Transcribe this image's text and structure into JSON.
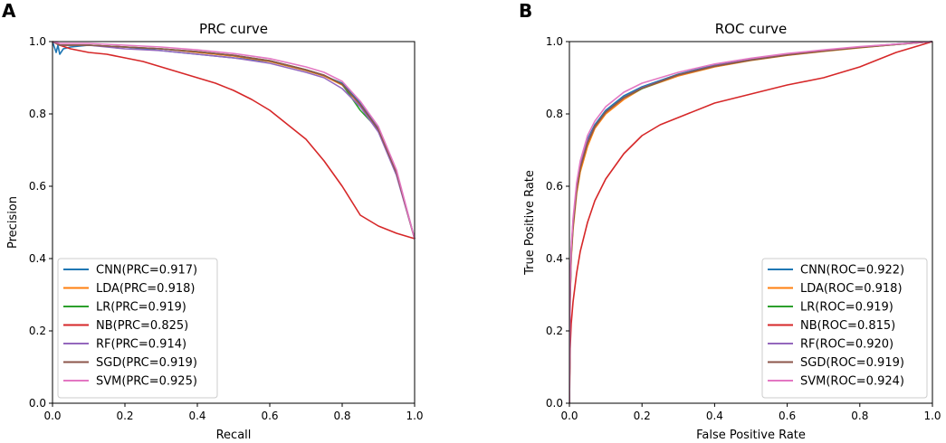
{
  "chart_data": [
    {
      "type": "line",
      "panel": "A",
      "title": "PRC curve",
      "xlabel": "Recall",
      "ylabel": "Precision",
      "xlim": [
        0,
        1
      ],
      "ylim": [
        0,
        1
      ],
      "xticks": [
        "0.0",
        "0.2",
        "0.4",
        "0.6",
        "0.8",
        "1.0"
      ],
      "yticks": [
        "0.0",
        "0.2",
        "0.4",
        "0.6",
        "0.8",
        "1.0"
      ],
      "legend_position": "lower-left",
      "series": [
        {
          "name": "CNN(PRC=0.917)",
          "color": "#1f77b4",
          "x": [
            0,
            0.01,
            0.015,
            0.02,
            0.03,
            0.05,
            0.1,
            0.2,
            0.3,
            0.4,
            0.5,
            0.6,
            0.7,
            0.75,
            0.8,
            0.85,
            0.9,
            0.95,
            1.0
          ],
          "y": [
            1.0,
            0.97,
            0.99,
            0.965,
            0.98,
            0.985,
            0.99,
            0.985,
            0.975,
            0.965,
            0.955,
            0.945,
            0.92,
            0.905,
            0.885,
            0.83,
            0.76,
            0.64,
            0.455
          ]
        },
        {
          "name": "LDA(PRC=0.918)",
          "color": "#ff7f0e",
          "x": [
            0,
            0.02,
            0.05,
            0.1,
            0.2,
            0.3,
            0.4,
            0.5,
            0.6,
            0.7,
            0.75,
            0.8,
            0.85,
            0.9,
            0.95,
            1.0
          ],
          "y": [
            1.0,
            0.99,
            0.99,
            0.99,
            0.985,
            0.98,
            0.97,
            0.96,
            0.945,
            0.92,
            0.905,
            0.88,
            0.825,
            0.755,
            0.635,
            0.455
          ]
        },
        {
          "name": "LR(PRC=0.919)",
          "color": "#2ca02c",
          "x": [
            0,
            0.02,
            0.05,
            0.1,
            0.2,
            0.3,
            0.4,
            0.5,
            0.6,
            0.7,
            0.75,
            0.8,
            0.85,
            0.9,
            0.95,
            1.0
          ],
          "y": [
            1.0,
            0.99,
            0.99,
            0.99,
            0.985,
            0.98,
            0.972,
            0.962,
            0.947,
            0.922,
            0.907,
            0.882,
            0.81,
            0.757,
            0.637,
            0.455
          ]
        },
        {
          "name": "NB(PRC=0.825)",
          "color": "#d62728",
          "x": [
            0,
            0.02,
            0.05,
            0.1,
            0.15,
            0.2,
            0.25,
            0.3,
            0.35,
            0.4,
            0.45,
            0.5,
            0.55,
            0.6,
            0.65,
            0.7,
            0.75,
            0.8,
            0.85,
            0.9,
            0.95,
            1.0
          ],
          "y": [
            1.0,
            0.99,
            0.98,
            0.97,
            0.965,
            0.955,
            0.945,
            0.93,
            0.915,
            0.9,
            0.885,
            0.865,
            0.84,
            0.81,
            0.77,
            0.73,
            0.67,
            0.6,
            0.52,
            0.49,
            0.47,
            0.455
          ]
        },
        {
          "name": "RF(PRC=0.914)",
          "color": "#9467bd",
          "x": [
            0,
            0.02,
            0.05,
            0.1,
            0.2,
            0.3,
            0.4,
            0.5,
            0.6,
            0.7,
            0.75,
            0.8,
            0.85,
            0.9,
            0.95,
            1.0
          ],
          "y": [
            1.0,
            0.99,
            0.99,
            0.99,
            0.98,
            0.975,
            0.965,
            0.955,
            0.94,
            0.915,
            0.9,
            0.87,
            0.82,
            0.75,
            0.63,
            0.455
          ]
        },
        {
          "name": "SGD(PRC=0.919)",
          "color": "#8c564b",
          "x": [
            0,
            0.02,
            0.05,
            0.1,
            0.2,
            0.3,
            0.4,
            0.5,
            0.6,
            0.7,
            0.75,
            0.8,
            0.85,
            0.9,
            0.95,
            1.0
          ],
          "y": [
            1.0,
            0.99,
            0.99,
            0.99,
            0.985,
            0.98,
            0.972,
            0.962,
            0.947,
            0.922,
            0.907,
            0.882,
            0.826,
            0.757,
            0.637,
            0.455
          ]
        },
        {
          "name": "SVM(PRC=0.925)",
          "color": "#e377c2",
          "x": [
            0,
            0.02,
            0.05,
            0.1,
            0.2,
            0.3,
            0.4,
            0.5,
            0.6,
            0.7,
            0.75,
            0.8,
            0.85,
            0.9,
            0.95,
            1.0
          ],
          "y": [
            1.0,
            0.995,
            0.995,
            0.995,
            0.99,
            0.985,
            0.977,
            0.967,
            0.953,
            0.93,
            0.915,
            0.89,
            0.835,
            0.765,
            0.645,
            0.455
          ]
        }
      ]
    },
    {
      "type": "line",
      "panel": "B",
      "title": "ROC curve",
      "xlabel": "False Positive Rate",
      "ylabel": "True Positive Rate",
      "xlim": [
        0,
        1
      ],
      "ylim": [
        0,
        1
      ],
      "xticks": [
        "0.0",
        "0.2",
        "0.4",
        "0.6",
        "0.8",
        "1.0"
      ],
      "yticks": [
        "0.0",
        "0.2",
        "0.4",
        "0.6",
        "0.8",
        "1.0"
      ],
      "legend_position": "lower-right",
      "series": [
        {
          "name": "CNN(ROC=0.922)",
          "color": "#1f77b4",
          "x": [
            0,
            0.002,
            0.005,
            0.01,
            0.02,
            0.03,
            0.05,
            0.07,
            0.1,
            0.15,
            0.2,
            0.3,
            0.4,
            0.5,
            0.6,
            0.7,
            0.8,
            0.9,
            1.0
          ],
          "y": [
            0,
            0.3,
            0.42,
            0.5,
            0.6,
            0.66,
            0.73,
            0.77,
            0.81,
            0.85,
            0.875,
            0.91,
            0.935,
            0.95,
            0.965,
            0.975,
            0.985,
            0.993,
            1.0
          ]
        },
        {
          "name": "LDA(ROC=0.918)",
          "color": "#ff7f0e",
          "x": [
            0,
            0.002,
            0.005,
            0.01,
            0.02,
            0.03,
            0.05,
            0.07,
            0.1,
            0.15,
            0.2,
            0.3,
            0.4,
            0.5,
            0.6,
            0.7,
            0.8,
            0.9,
            1.0
          ],
          "y": [
            0,
            0.28,
            0.4,
            0.48,
            0.58,
            0.64,
            0.71,
            0.76,
            0.8,
            0.84,
            0.87,
            0.905,
            0.93,
            0.948,
            0.962,
            0.973,
            0.983,
            0.992,
            1.0
          ]
        },
        {
          "name": "LR(ROC=0.919)",
          "color": "#2ca02c",
          "x": [
            0,
            0.002,
            0.005,
            0.01,
            0.02,
            0.03,
            0.05,
            0.07,
            0.1,
            0.15,
            0.2,
            0.3,
            0.4,
            0.5,
            0.6,
            0.7,
            0.8,
            0.9,
            1.0
          ],
          "y": [
            0,
            0.29,
            0.41,
            0.49,
            0.59,
            0.65,
            0.72,
            0.765,
            0.805,
            0.845,
            0.87,
            0.908,
            0.932,
            0.949,
            0.963,
            0.974,
            0.984,
            0.992,
            1.0
          ]
        },
        {
          "name": "NB(ROC=0.815)",
          "color": "#d62728",
          "x": [
            0,
            0.002,
            0.005,
            0.01,
            0.02,
            0.03,
            0.05,
            0.07,
            0.1,
            0.15,
            0.2,
            0.25,
            0.3,
            0.4,
            0.5,
            0.6,
            0.7,
            0.8,
            0.85,
            0.9,
            0.95,
            1.0
          ],
          "y": [
            0,
            0.15,
            0.22,
            0.28,
            0.36,
            0.42,
            0.5,
            0.56,
            0.62,
            0.69,
            0.74,
            0.77,
            0.79,
            0.83,
            0.855,
            0.88,
            0.9,
            0.93,
            0.95,
            0.97,
            0.985,
            1.0
          ]
        },
        {
          "name": "RF(ROC=0.920)",
          "color": "#9467bd",
          "x": [
            0,
            0.002,
            0.005,
            0.01,
            0.02,
            0.03,
            0.05,
            0.07,
            0.1,
            0.15,
            0.2,
            0.3,
            0.4,
            0.5,
            0.6,
            0.7,
            0.8,
            0.9,
            1.0
          ],
          "y": [
            0,
            0.3,
            0.42,
            0.5,
            0.6,
            0.66,
            0.725,
            0.765,
            0.805,
            0.845,
            0.872,
            0.908,
            0.933,
            0.95,
            0.964,
            0.975,
            0.985,
            0.993,
            1.0
          ]
        },
        {
          "name": "SGD(ROC=0.919)",
          "color": "#8c564b",
          "x": [
            0,
            0.002,
            0.005,
            0.01,
            0.02,
            0.03,
            0.05,
            0.07,
            0.1,
            0.15,
            0.2,
            0.3,
            0.4,
            0.5,
            0.6,
            0.7,
            0.8,
            0.9,
            1.0
          ],
          "y": [
            0,
            0.29,
            0.41,
            0.49,
            0.59,
            0.65,
            0.72,
            0.765,
            0.805,
            0.845,
            0.871,
            0.908,
            0.932,
            0.949,
            0.963,
            0.974,
            0.984,
            0.992,
            1.0
          ]
        },
        {
          "name": "SVM(ROC=0.924)",
          "color": "#e377c2",
          "x": [
            0,
            0.002,
            0.005,
            0.01,
            0.02,
            0.03,
            0.05,
            0.07,
            0.1,
            0.15,
            0.2,
            0.3,
            0.4,
            0.5,
            0.6,
            0.7,
            0.8,
            0.9,
            1.0
          ],
          "y": [
            0,
            0.31,
            0.43,
            0.51,
            0.61,
            0.67,
            0.74,
            0.78,
            0.82,
            0.86,
            0.885,
            0.915,
            0.938,
            0.954,
            0.967,
            0.977,
            0.986,
            0.993,
            1.0
          ]
        }
      ]
    }
  ]
}
